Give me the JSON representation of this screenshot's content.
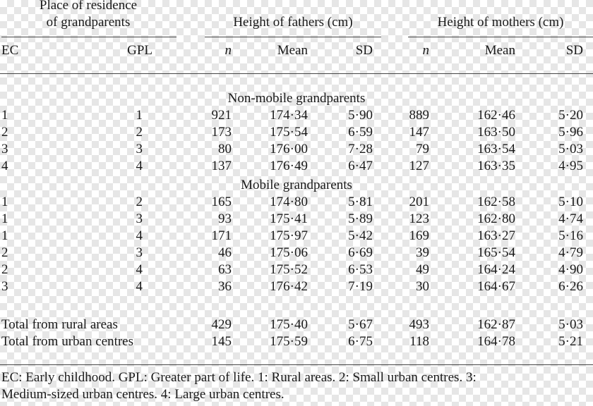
{
  "header": {
    "place_line1": "Place of residence",
    "place_line2": "of grandparents",
    "fathers_title": "Height of fathers (cm)",
    "mothers_title": "Height of mothers (cm)",
    "col_ec": "EC",
    "col_gpl": "GPL",
    "col_n": "n",
    "col_mean": "Mean",
    "col_sd": "SD"
  },
  "sections": [
    {
      "title": "Non-mobile grandparents",
      "rows": [
        {
          "ec": "1",
          "gpl": "1",
          "f_n": "921",
          "f_mean": "174·34",
          "f_sd": "5·90",
          "m_n": "889",
          "m_mean": "162·46",
          "m_sd": "5·20"
        },
        {
          "ec": "2",
          "gpl": "2",
          "f_n": "173",
          "f_mean": "175·54",
          "f_sd": "6·59",
          "m_n": "147",
          "m_mean": "163·50",
          "m_sd": "5·96"
        },
        {
          "ec": "3",
          "gpl": "3",
          "f_n": "80",
          "f_mean": "176·00",
          "f_sd": "7·28",
          "m_n": "79",
          "m_mean": "163·54",
          "m_sd": "5·03"
        },
        {
          "ec": "4",
          "gpl": "4",
          "f_n": "137",
          "f_mean": "176·49",
          "f_sd": "6·47",
          "m_n": "127",
          "m_mean": "163·35",
          "m_sd": "4·95"
        }
      ]
    },
    {
      "title": "Mobile grandparents",
      "rows": [
        {
          "ec": "1",
          "gpl": "2",
          "f_n": "165",
          "f_mean": "174·80",
          "f_sd": "5·81",
          "m_n": "201",
          "m_mean": "162·58",
          "m_sd": "5·10"
        },
        {
          "ec": "1",
          "gpl": "3",
          "f_n": "93",
          "f_mean": "175·41",
          "f_sd": "5·89",
          "m_n": "123",
          "m_mean": "162·80",
          "m_sd": "4·74"
        },
        {
          "ec": "1",
          "gpl": "4",
          "f_n": "171",
          "f_mean": "175·97",
          "f_sd": "5·42",
          "m_n": "169",
          "m_mean": "163·27",
          "m_sd": "5·16"
        },
        {
          "ec": "2",
          "gpl": "3",
          "f_n": "46",
          "f_mean": "175·06",
          "f_sd": "6·69",
          "m_n": "39",
          "m_mean": "165·54",
          "m_sd": "4·79"
        },
        {
          "ec": "2",
          "gpl": "4",
          "f_n": "63",
          "f_mean": "175·52",
          "f_sd": "6·53",
          "m_n": "49",
          "m_mean": "164·24",
          "m_sd": "4·90"
        },
        {
          "ec": "3",
          "gpl": "4",
          "f_n": "36",
          "f_mean": "176·42",
          "f_sd": "7·19",
          "m_n": "30",
          "m_mean": "164·67",
          "m_sd": "6·26"
        }
      ]
    }
  ],
  "totals": [
    {
      "label": "Total from rural areas",
      "f_n": "429",
      "f_mean": "175·40",
      "f_sd": "5·67",
      "m_n": "493",
      "m_mean": "162·87",
      "m_sd": "5·03"
    },
    {
      "label": "Total from urban centres",
      "f_n": "145",
      "f_mean": "175·59",
      "f_sd": "6·75",
      "m_n": "118",
      "m_mean": "164·78",
      "m_sd": "5·21"
    }
  ],
  "footnote": {
    "line1": "EC: Early childhood. GPL: Greater part of life. 1: Rural areas. 2: Small urban centres. 3:",
    "line2": "Medium-sized urban centres. 4: Large urban centres."
  }
}
